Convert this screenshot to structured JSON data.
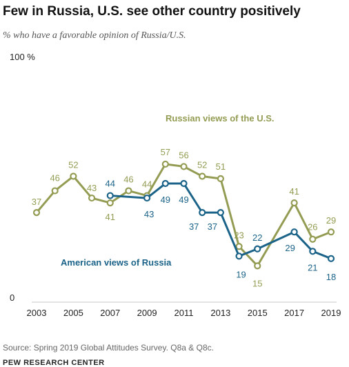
{
  "header": {
    "title": "Few in Russia, U.S. see other country positively",
    "subtitle": "% who have a favorable opinion of Russia/U.S."
  },
  "footer": {
    "source": "Source: Spring 2019 Global Attitudes Survey. Q8a & Q8c.",
    "organization": "PEW RESEARCH CENTER"
  },
  "chart_data": {
    "type": "line",
    "title": "Few in Russia, U.S. see other country positively",
    "subtitle": "% who have a favorable opinion of Russia/U.S.",
    "xlim": [
      2003,
      2019
    ],
    "ylim": [
      0,
      100
    ],
    "x_ticks": [
      "2003",
      "2005",
      "2007",
      "2009",
      "2011",
      "2013",
      "2015",
      "2017",
      "2019"
    ],
    "y_ticks": [
      {
        "value": 0,
        "label": "0"
      },
      {
        "value": 100,
        "label": "100 %"
      }
    ],
    "grid": false,
    "series": [
      {
        "name": "Russian views of the U.S.",
        "color": "#949c53",
        "points": [
          {
            "x": 2003,
            "y": 37,
            "label": "37"
          },
          {
            "x": 2004,
            "y": 46,
            "label": "46"
          },
          {
            "x": 2005,
            "y": 52,
            "label": "52"
          },
          {
            "x": 2006,
            "y": 43,
            "label": "43"
          },
          {
            "x": 2007,
            "y": 41,
            "label": "41"
          },
          {
            "x": 2008,
            "y": 46,
            "label": "46"
          },
          {
            "x": 2009,
            "y": 44,
            "label": "44"
          },
          {
            "x": 2010,
            "y": 57,
            "label": "57"
          },
          {
            "x": 2011,
            "y": 56,
            "label": "56"
          },
          {
            "x": 2012,
            "y": 52,
            "label": "52"
          },
          {
            "x": 2013,
            "y": 51,
            "label": "51"
          },
          {
            "x": 2014,
            "y": 23,
            "label": "23"
          },
          {
            "x": 2015,
            "y": 15,
            "label": "15"
          },
          {
            "x": 2017,
            "y": 41,
            "label": "41"
          },
          {
            "x": 2018,
            "y": 26,
            "label": "26"
          },
          {
            "x": 2019,
            "y": 29,
            "label": "29"
          }
        ]
      },
      {
        "name": "American views of Russia",
        "color": "#1b6388",
        "points": [
          {
            "x": 2007,
            "y": 44,
            "label": "44"
          },
          {
            "x": 2009,
            "y": 43,
            "label": "43"
          },
          {
            "x": 2010,
            "y": 49,
            "label": "49"
          },
          {
            "x": 2011,
            "y": 49,
            "label": "49"
          },
          {
            "x": 2012,
            "y": 37,
            "label": "37"
          },
          {
            "x": 2013,
            "y": 37,
            "label": "37"
          },
          {
            "x": 2014,
            "y": 19,
            "label": "19"
          },
          {
            "x": 2015,
            "y": 22,
            "label": "22"
          },
          {
            "x": 2017,
            "y": 29,
            "label": "29"
          },
          {
            "x": 2018,
            "y": 21,
            "label": "21"
          },
          {
            "x": 2019,
            "y": 18,
            "label": "18"
          }
        ]
      }
    ]
  }
}
